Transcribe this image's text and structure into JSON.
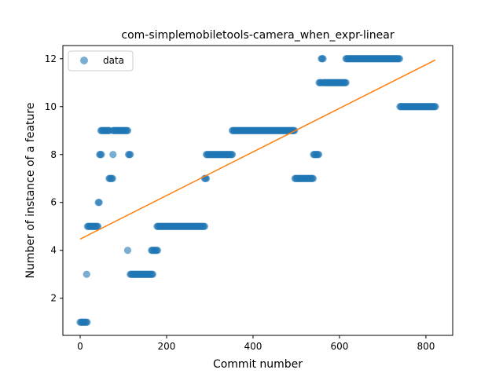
{
  "chart_data": {
    "type": "scatter",
    "title": "com-simplemobiletools-camera_when_expr-linear",
    "xlabel": "Commit number",
    "ylabel": "Number of instance of a feature",
    "xlim": [
      -40,
      862
    ],
    "ylim": [
      0.45,
      12.55
    ],
    "xticks": [
      0,
      200,
      400,
      600,
      800
    ],
    "yticks": [
      2,
      4,
      6,
      8,
      10,
      12
    ],
    "legend": {
      "entries": [
        "data"
      ],
      "placement": "top-left"
    },
    "grid": false,
    "colors": {
      "points": "#1f77b4",
      "fit": "#ff7f0e"
    },
    "series": [
      {
        "name": "data",
        "kind": "points",
        "segments": [
          {
            "x_start": 0,
            "x_end": 17,
            "y": 1
          },
          {
            "x_start": 15,
            "x_end": 15,
            "y": 3
          },
          {
            "x_start": 17,
            "x_end": 42,
            "y": 5
          },
          {
            "x_start": 42,
            "x_end": 44,
            "y": 6
          },
          {
            "x_start": 45,
            "x_end": 49,
            "y": 8
          },
          {
            "x_start": 48,
            "x_end": 68,
            "y": 9
          },
          {
            "x_start": 67,
            "x_end": 76,
            "y": 7
          },
          {
            "x_start": 76,
            "x_end": 76,
            "y": 8
          },
          {
            "x_start": 76,
            "x_end": 110,
            "y": 9
          },
          {
            "x_start": 110,
            "x_end": 110,
            "y": 4
          },
          {
            "x_start": 112,
            "x_end": 116,
            "y": 8
          },
          {
            "x_start": 116,
            "x_end": 168,
            "y": 3
          },
          {
            "x_start": 165,
            "x_end": 180,
            "y": 4
          },
          {
            "x_start": 178,
            "x_end": 288,
            "y": 5
          },
          {
            "x_start": 288,
            "x_end": 292,
            "y": 7
          },
          {
            "x_start": 292,
            "x_end": 352,
            "y": 8
          },
          {
            "x_start": 352,
            "x_end": 497,
            "y": 9
          },
          {
            "x_start": 497,
            "x_end": 540,
            "y": 7
          },
          {
            "x_start": 540,
            "x_end": 553,
            "y": 8
          },
          {
            "x_start": 553,
            "x_end": 560,
            "y": 11
          },
          {
            "x_start": 558,
            "x_end": 563,
            "y": 12
          },
          {
            "x_start": 563,
            "x_end": 615,
            "y": 11
          },
          {
            "x_start": 615,
            "x_end": 740,
            "y": 12
          },
          {
            "x_start": 740,
            "x_end": 822,
            "y": 10
          }
        ]
      },
      {
        "name": "fit",
        "kind": "line",
        "x": [
          0,
          822
        ],
        "y": [
          4.47,
          11.95
        ]
      }
    ]
  }
}
